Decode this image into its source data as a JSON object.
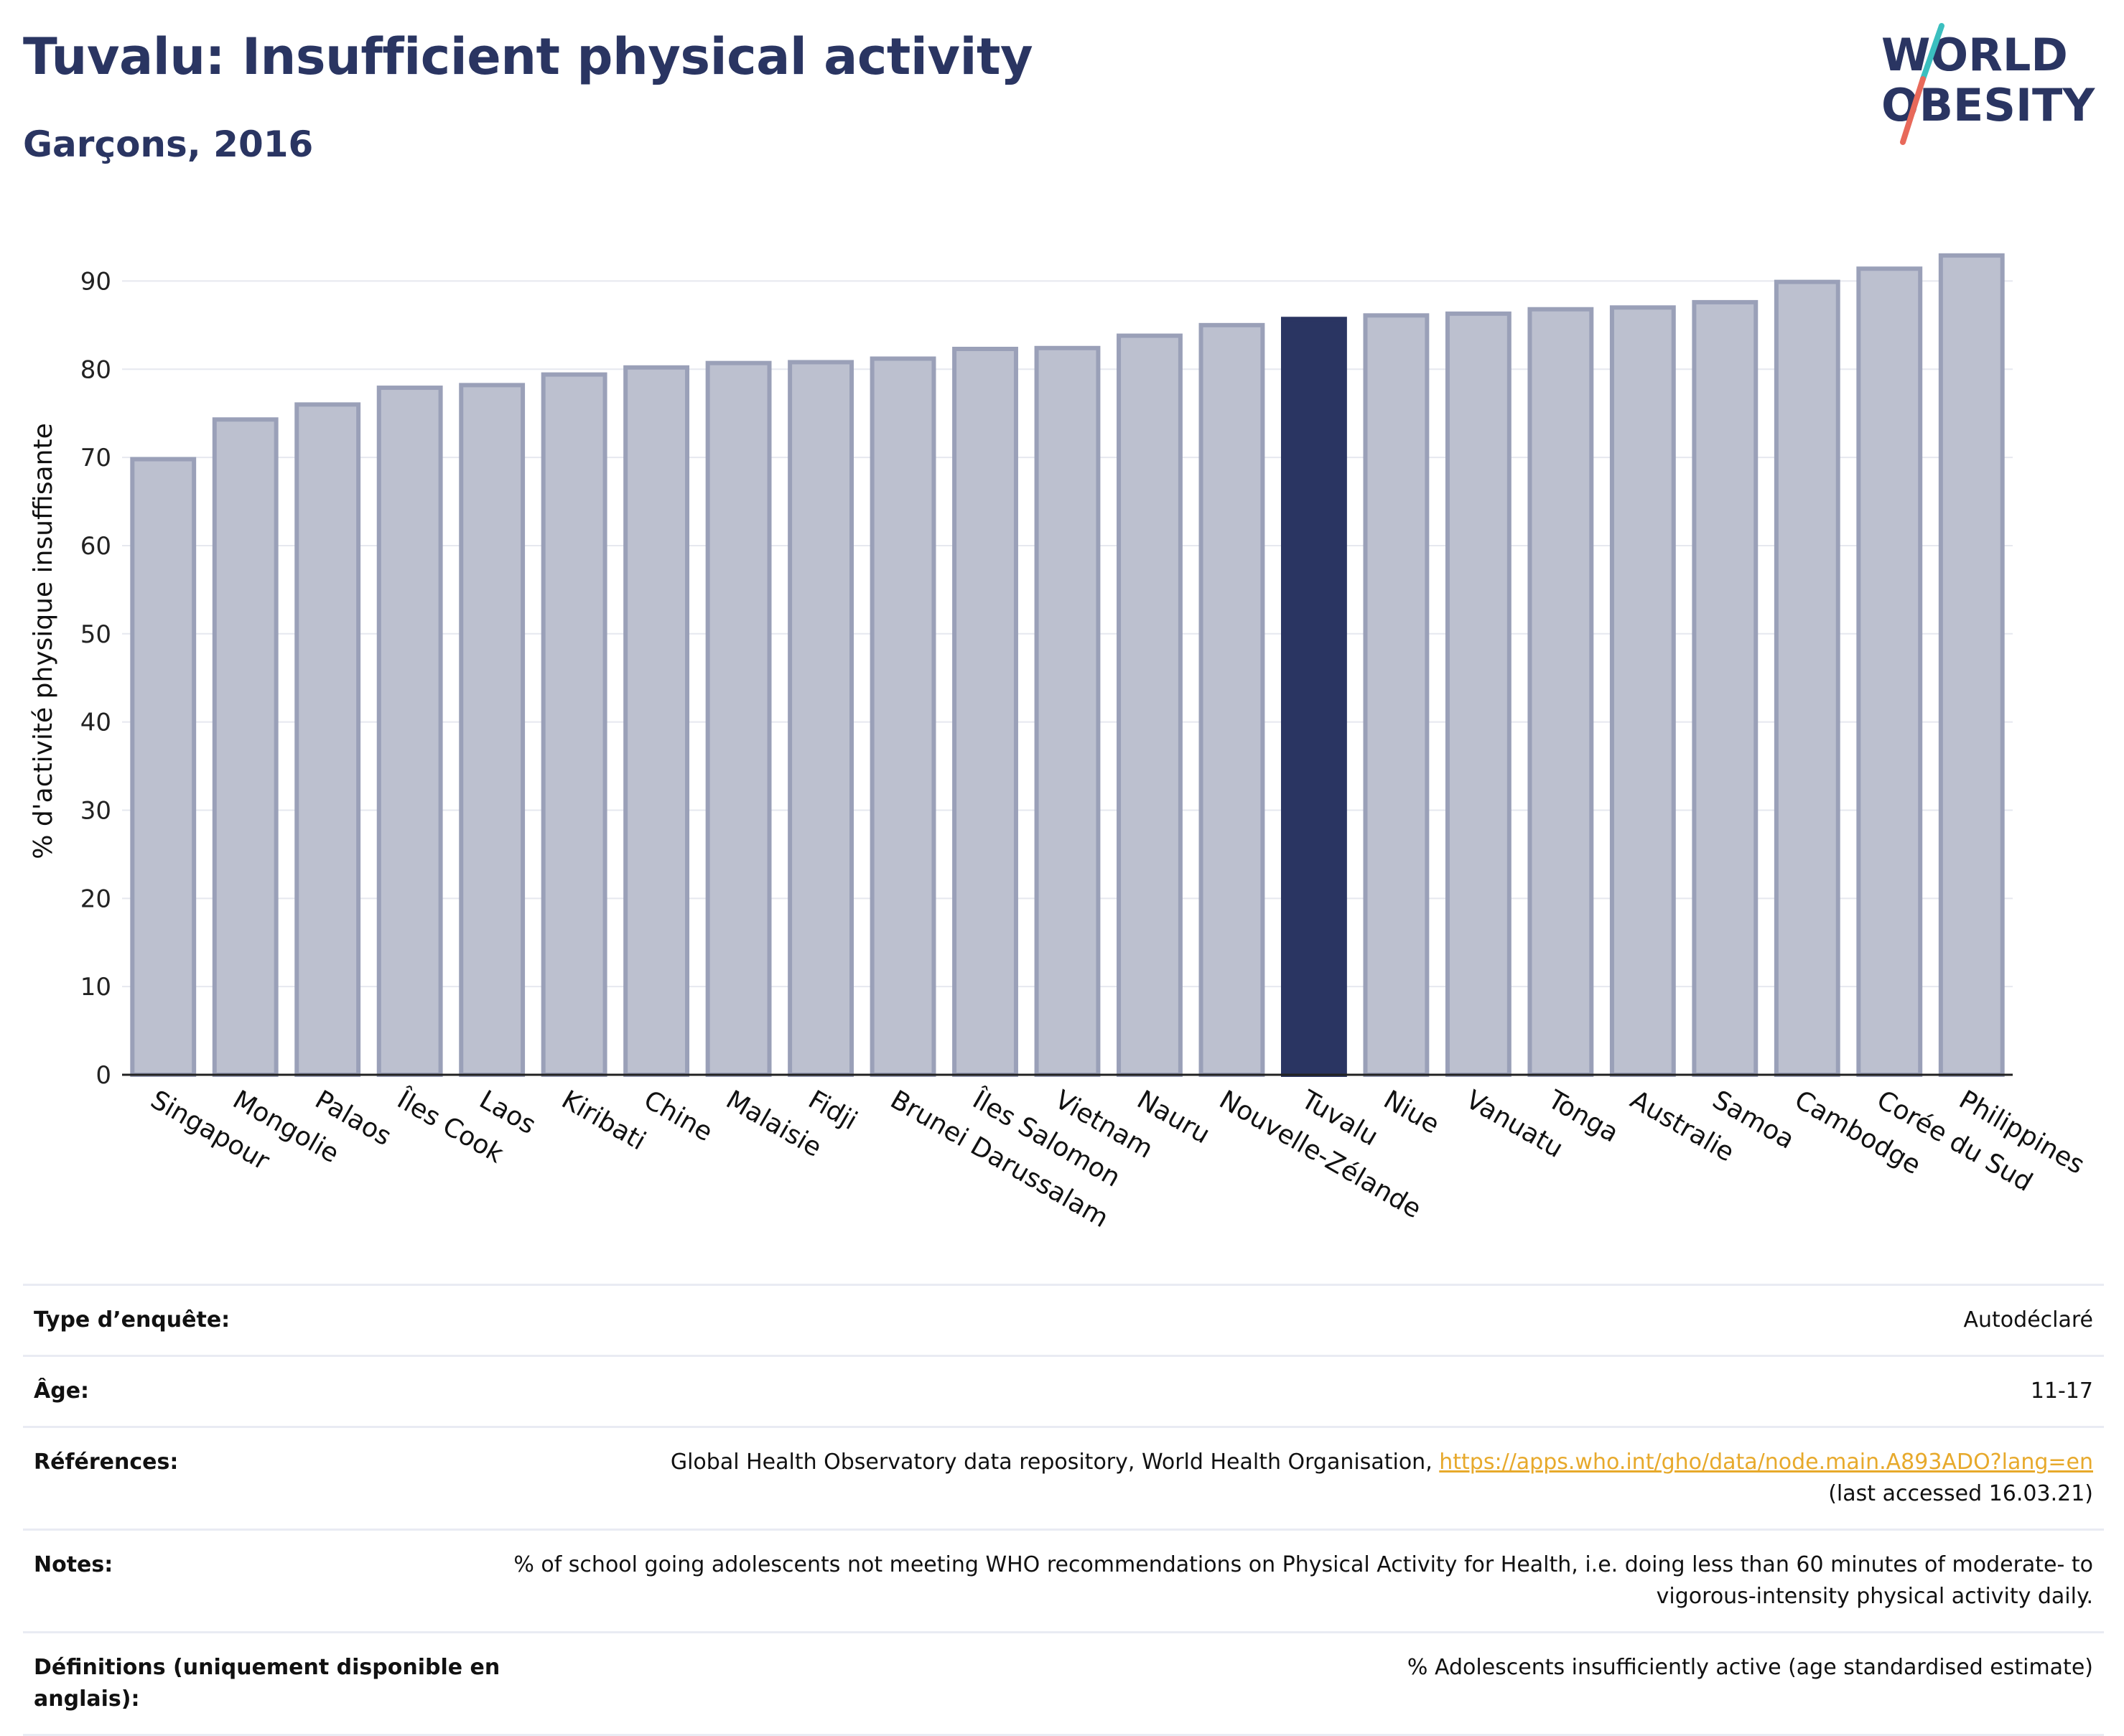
{
  "header": {
    "title": "Tuvalu: Insufficient physical activity",
    "subtitle": "Garçons, 2016"
  },
  "logo": {
    "line1": "WORLD",
    "line2": "OBESITY",
    "text_color": "#2a3562",
    "slash_color_top": "#3bbfbf",
    "slash_color_bottom": "#e8695a"
  },
  "colors": {
    "bar": "#bcc0cf",
    "bar_edge": "#9aa0b8",
    "highlight": "#2a3562",
    "grid": "#e6e8ef",
    "axis": "#222222"
  },
  "chart_data": {
    "type": "bar",
    "ylabel": "% d'activité physique insuffisante",
    "ylim": [
      0,
      95
    ],
    "yticks": [
      0,
      10,
      20,
      30,
      40,
      50,
      60,
      70,
      80,
      90
    ],
    "grid": true,
    "highlight": "Tuvalu",
    "categories": [
      "Singapour",
      "Mongolie",
      "Palaos",
      "Îles Cook",
      "Laos",
      "Kiribati",
      "Chine",
      "Malaisie",
      "Fidji",
      "Brunei Darussalam",
      "Îles Salomon",
      "Vietnam",
      "Nauru",
      "Nouvelle-Zélande",
      "Tuvalu",
      "Niue",
      "Vanuatu",
      "Tonga",
      "Australie",
      "Samoa",
      "Cambodge",
      "Corée du Sud",
      "Philippines"
    ],
    "values": [
      69.8,
      74.3,
      76.0,
      77.9,
      78.2,
      79.4,
      80.2,
      80.7,
      80.8,
      81.2,
      82.3,
      82.4,
      83.8,
      85.0,
      85.7,
      86.1,
      86.3,
      86.8,
      87.0,
      87.6,
      89.9,
      91.4,
      92.9
    ]
  },
  "info": {
    "survey_type": {
      "label": "Type d’enquête:",
      "value": "Autodéclaré"
    },
    "age": {
      "label": "Âge:",
      "value": "11-17"
    },
    "references": {
      "label": "Références:",
      "text": "Global Health Observatory data repository, World Health Organisation, ",
      "link": "https://apps.who.int/gho/data/node.main.A893ADO?lang=en",
      "accessed": "(last accessed 16.03.21)"
    },
    "notes": {
      "label": "Notes:",
      "value": "% of school going adolescents not meeting WHO recommendations on Physical Activity for Health, i.e. doing less than 60 minutes of moderate- to vigorous-intensity physical activity daily."
    },
    "definitions": {
      "label": "Définitions (uniquement disponible en anglais):",
      "value": "% Adolescents insufficiently active (age standardised estimate)"
    }
  }
}
